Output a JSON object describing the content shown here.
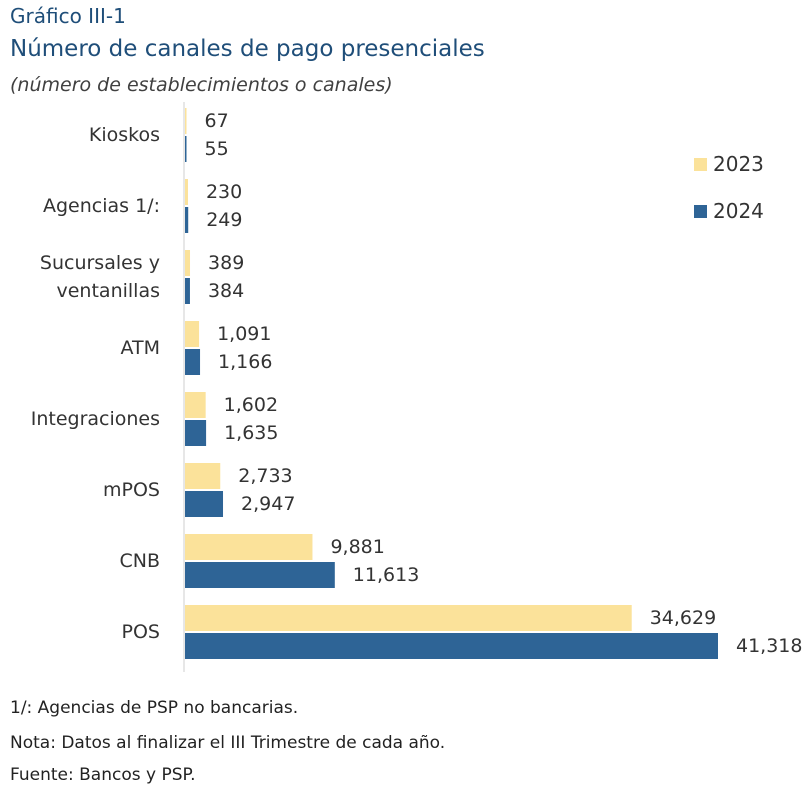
{
  "header": {
    "label": "Gráfico III-1",
    "title": "Número de canales de pago presenciales",
    "subtitle": "(número de establecimientos o canales)"
  },
  "chart_data": {
    "type": "bar",
    "orientation": "horizontal",
    "categories": [
      "Kioskos",
      "Agencias 1/:",
      "Sucursales y ventanillas",
      "ATM",
      "Integraciones",
      "mPOS",
      "CNB",
      "POS"
    ],
    "category_lines": [
      [
        "Kioskos"
      ],
      [
        "Agencias 1/:"
      ],
      [
        "Sucursales y",
        "ventanillas"
      ],
      [
        "ATM"
      ],
      [
        "Integraciones"
      ],
      [
        "mPOS"
      ],
      [
        "CNB"
      ],
      [
        "POS"
      ]
    ],
    "series": [
      {
        "name": "2023",
        "color": "#fbe29a",
        "values": [
          67,
          230,
          389,
          1091,
          1602,
          2733,
          9881,
          34629
        ]
      },
      {
        "name": "2024",
        "color": "#2e6496",
        "values": [
          55,
          249,
          384,
          1166,
          1635,
          2947,
          11613,
          41318
        ]
      }
    ],
    "data_labels": [
      [
        "67",
        "230",
        "389",
        "1,091",
        "1,602",
        "2,733",
        "9,881",
        "34,629"
      ],
      [
        "55",
        "249",
        "384",
        "1,166",
        "1,635",
        "2,947",
        "11,613",
        "41,318"
      ]
    ],
    "xlim": [
      0,
      41318
    ],
    "grid": false,
    "legend_position": "top-right"
  },
  "notes": [
    "1/: Agencias de PSP no bancarias.",
    "Nota: Datos al finalizar el III Trimestre de cada año.",
    "Fuente: Bancos y PSP."
  ]
}
